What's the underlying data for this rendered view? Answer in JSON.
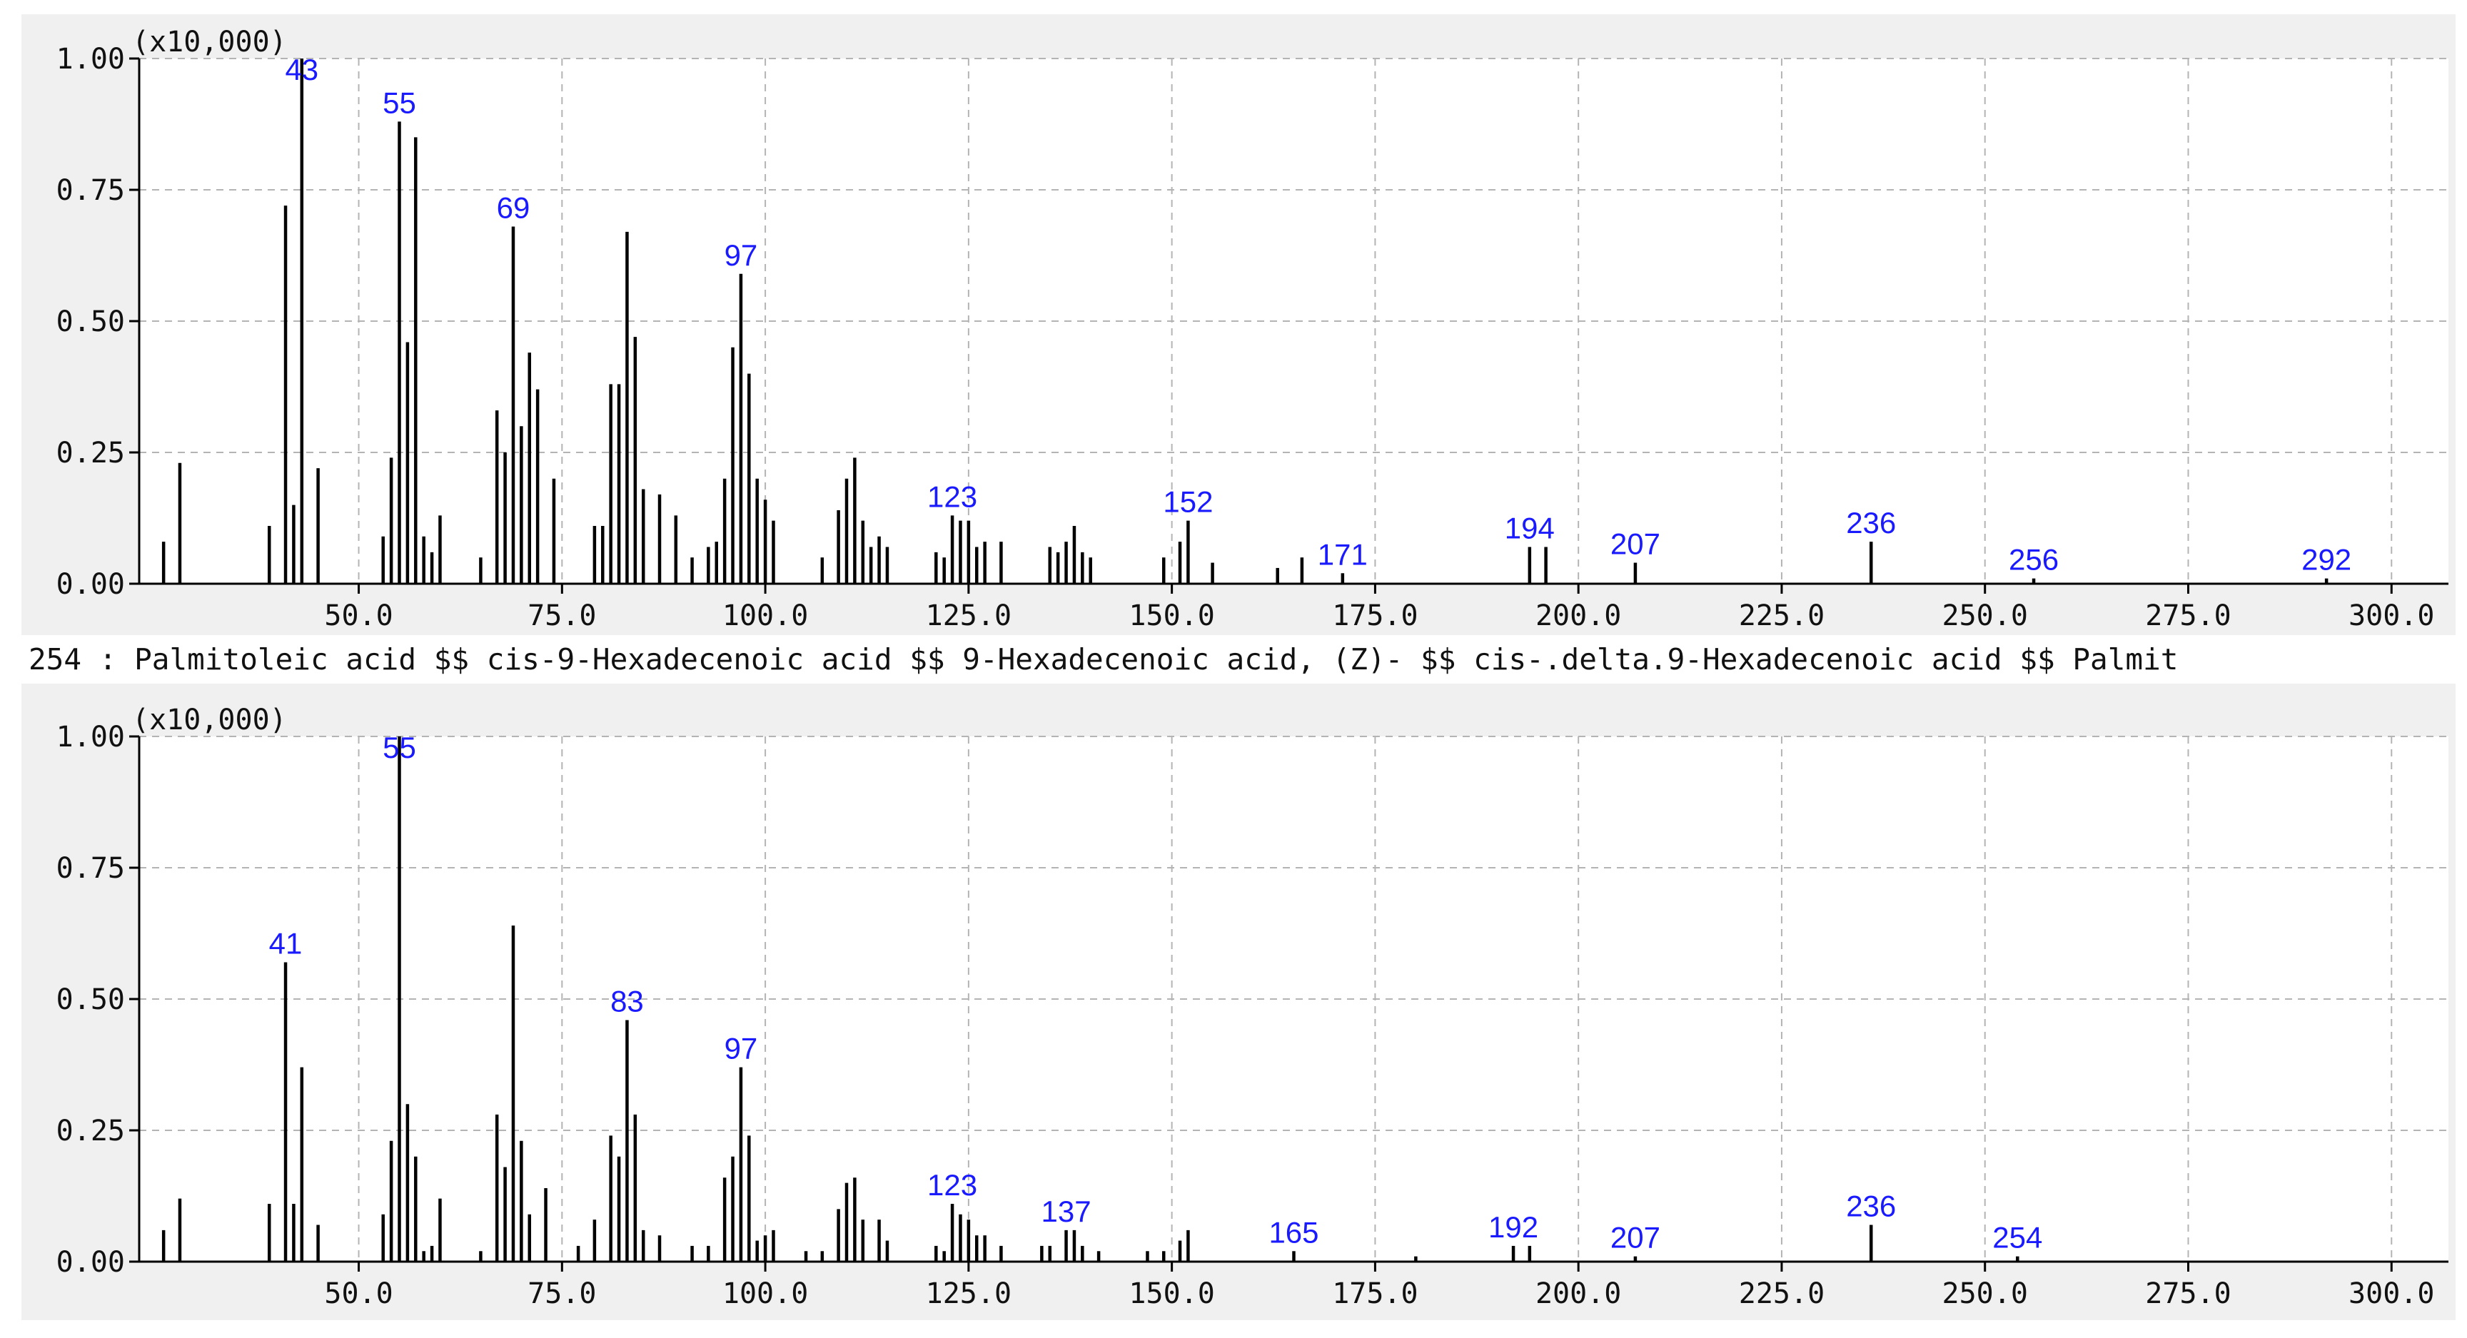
{
  "caption": "254 : Palmitoleic acid $$ cis-9-Hexadecenoic acid $$ 9-Hexadecenoic acid, (Z)- $$ cis-.delta.9-Hexadecenoic acid $$ Palmit",
  "colors": {
    "panel_background": "#f0f0f0",
    "plot_background": "#ffffff",
    "peak": "#000000",
    "peak_label": "#1a1aff",
    "grid": "#b4b4b4"
  },
  "chart_data": [
    {
      "type": "bar",
      "panel": "sample spectrum (top)",
      "scale_label": "(x10,000)",
      "xlim": [
        23,
        307
      ],
      "ylim": [
        0,
        1
      ],
      "x_ticks": [
        50,
        75,
        100,
        125,
        150,
        175,
        200,
        225,
        250,
        275,
        300
      ],
      "x_tick_labels": [
        "50.0",
        "75.0",
        "100.0",
        "125.0",
        "150.0",
        "175.0",
        "200.0",
        "225.0",
        "250.0",
        "275.0",
        "300.0"
      ],
      "y_ticks": [
        0,
        0.25,
        0.5,
        0.75,
        1.0
      ],
      "y_tick_labels": [
        "0.00",
        "0.25",
        "0.50",
        "0.75",
        "1.00"
      ],
      "grid": true,
      "peaks": [
        [
          26,
          0.08
        ],
        [
          28,
          0.23
        ],
        [
          39,
          0.11
        ],
        [
          41,
          0.72
        ],
        [
          42,
          0.15
        ],
        [
          43,
          1.0
        ],
        [
          45,
          0.22
        ],
        [
          53,
          0.09
        ],
        [
          54,
          0.24
        ],
        [
          55,
          0.88
        ],
        [
          56,
          0.46
        ],
        [
          57,
          0.85
        ],
        [
          58,
          0.09
        ],
        [
          59,
          0.06
        ],
        [
          60,
          0.13
        ],
        [
          65,
          0.05
        ],
        [
          67,
          0.33
        ],
        [
          68,
          0.25
        ],
        [
          69,
          0.68
        ],
        [
          70,
          0.3
        ],
        [
          71,
          0.44
        ],
        [
          72,
          0.37
        ],
        [
          74,
          0.2
        ],
        [
          79,
          0.11
        ],
        [
          80,
          0.11
        ],
        [
          81,
          0.38
        ],
        [
          82,
          0.38
        ],
        [
          83,
          0.67
        ],
        [
          84,
          0.47
        ],
        [
          85,
          0.18
        ],
        [
          87,
          0.17
        ],
        [
          89,
          0.13
        ],
        [
          91,
          0.05
        ],
        [
          93,
          0.07
        ],
        [
          94,
          0.08
        ],
        [
          95,
          0.2
        ],
        [
          96,
          0.45
        ],
        [
          97,
          0.59
        ],
        [
          98,
          0.4
        ],
        [
          99,
          0.2
        ],
        [
          100,
          0.16
        ],
        [
          101,
          0.12
        ],
        [
          107,
          0.05
        ],
        [
          109,
          0.14
        ],
        [
          110,
          0.2
        ],
        [
          111,
          0.24
        ],
        [
          112,
          0.12
        ],
        [
          113,
          0.07
        ],
        [
          114,
          0.09
        ],
        [
          115,
          0.07
        ],
        [
          121,
          0.06
        ],
        [
          122,
          0.05
        ],
        [
          123,
          0.13
        ],
        [
          124,
          0.12
        ],
        [
          125,
          0.12
        ],
        [
          126,
          0.07
        ],
        [
          127,
          0.08
        ],
        [
          129,
          0.08
        ],
        [
          135,
          0.07
        ],
        [
          136,
          0.06
        ],
        [
          137,
          0.08
        ],
        [
          138,
          0.11
        ],
        [
          139,
          0.06
        ],
        [
          140,
          0.05
        ],
        [
          149,
          0.05
        ],
        [
          151,
          0.08
        ],
        [
          152,
          0.12
        ],
        [
          155,
          0.04
        ],
        [
          163,
          0.03
        ],
        [
          166,
          0.05
        ],
        [
          171,
          0.02
        ],
        [
          194,
          0.07
        ],
        [
          196,
          0.07
        ],
        [
          207,
          0.04
        ],
        [
          236,
          0.08
        ],
        [
          256,
          0.01
        ],
        [
          292,
          0.01
        ]
      ],
      "peak_labels": [
        {
          "x": 43,
          "text": "43"
        },
        {
          "x": 55,
          "text": "55"
        },
        {
          "x": 69,
          "text": "69"
        },
        {
          "x": 97,
          "text": "97"
        },
        {
          "x": 123,
          "text": "123"
        },
        {
          "x": 152,
          "text": "152"
        },
        {
          "x": 171,
          "text": "171"
        },
        {
          "x": 194,
          "text": "194"
        },
        {
          "x": 207,
          "text": "207"
        },
        {
          "x": 236,
          "text": "236"
        },
        {
          "x": 256,
          "text": "256"
        },
        {
          "x": 292,
          "text": "292"
        }
      ]
    },
    {
      "type": "bar",
      "panel": "library spectrum (bottom)",
      "scale_label": "(x10,000)",
      "xlim": [
        23,
        307
      ],
      "ylim": [
        0,
        1
      ],
      "x_ticks": [
        50,
        75,
        100,
        125,
        150,
        175,
        200,
        225,
        250,
        275,
        300
      ],
      "x_tick_labels": [
        "50.0",
        "75.0",
        "100.0",
        "125.0",
        "150.0",
        "175.0",
        "200.0",
        "225.0",
        "250.0",
        "275.0",
        "300.0"
      ],
      "y_ticks": [
        0,
        0.25,
        0.5,
        0.75,
        1.0
      ],
      "y_tick_labels": [
        "0.00",
        "0.25",
        "0.50",
        "0.75",
        "1.00"
      ],
      "grid": true,
      "peaks": [
        [
          26,
          0.06
        ],
        [
          28,
          0.12
        ],
        [
          39,
          0.11
        ],
        [
          41,
          0.57
        ],
        [
          42,
          0.11
        ],
        [
          43,
          0.37
        ],
        [
          45,
          0.07
        ],
        [
          53,
          0.09
        ],
        [
          54,
          0.23
        ],
        [
          55,
          1.0
        ],
        [
          56,
          0.3
        ],
        [
          57,
          0.2
        ],
        [
          58,
          0.02
        ],
        [
          59,
          0.03
        ],
        [
          60,
          0.12
        ],
        [
          65,
          0.02
        ],
        [
          67,
          0.28
        ],
        [
          68,
          0.18
        ],
        [
          69,
          0.64
        ],
        [
          70,
          0.23
        ],
        [
          71,
          0.09
        ],
        [
          73,
          0.14
        ],
        [
          77,
          0.03
        ],
        [
          79,
          0.08
        ],
        [
          81,
          0.24
        ],
        [
          82,
          0.2
        ],
        [
          83,
          0.46
        ],
        [
          84,
          0.28
        ],
        [
          85,
          0.06
        ],
        [
          87,
          0.05
        ],
        [
          91,
          0.03
        ],
        [
          93,
          0.03
        ],
        [
          95,
          0.16
        ],
        [
          96,
          0.2
        ],
        [
          97,
          0.37
        ],
        [
          98,
          0.24
        ],
        [
          99,
          0.04
        ],
        [
          100,
          0.05
        ],
        [
          101,
          0.06
        ],
        [
          105,
          0.02
        ],
        [
          107,
          0.02
        ],
        [
          109,
          0.1
        ],
        [
          110,
          0.15
        ],
        [
          111,
          0.16
        ],
        [
          112,
          0.08
        ],
        [
          114,
          0.08
        ],
        [
          115,
          0.04
        ],
        [
          121,
          0.03
        ],
        [
          122,
          0.02
        ],
        [
          123,
          0.11
        ],
        [
          124,
          0.09
        ],
        [
          125,
          0.08
        ],
        [
          126,
          0.05
        ],
        [
          127,
          0.05
        ],
        [
          129,
          0.03
        ],
        [
          134,
          0.03
        ],
        [
          135,
          0.03
        ],
        [
          137,
          0.06
        ],
        [
          138,
          0.06
        ],
        [
          139,
          0.03
        ],
        [
          141,
          0.02
        ],
        [
          147,
          0.02
        ],
        [
          149,
          0.02
        ],
        [
          151,
          0.04
        ],
        [
          152,
          0.06
        ],
        [
          165,
          0.02
        ],
        [
          180,
          0.01
        ],
        [
          192,
          0.03
        ],
        [
          194,
          0.03
        ],
        [
          207,
          0.01
        ],
        [
          236,
          0.07
        ],
        [
          254,
          0.01
        ]
      ],
      "peak_labels": [
        {
          "x": 41,
          "text": "41"
        },
        {
          "x": 55,
          "text": "55"
        },
        {
          "x": 83,
          "text": "83"
        },
        {
          "x": 97,
          "text": "97"
        },
        {
          "x": 123,
          "text": "123"
        },
        {
          "x": 137,
          "text": "137"
        },
        {
          "x": 165,
          "text": "165"
        },
        {
          "x": 192,
          "text": "192"
        },
        {
          "x": 207,
          "text": "207"
        },
        {
          "x": 236,
          "text": "236"
        },
        {
          "x": 254,
          "text": "254"
        }
      ]
    }
  ]
}
